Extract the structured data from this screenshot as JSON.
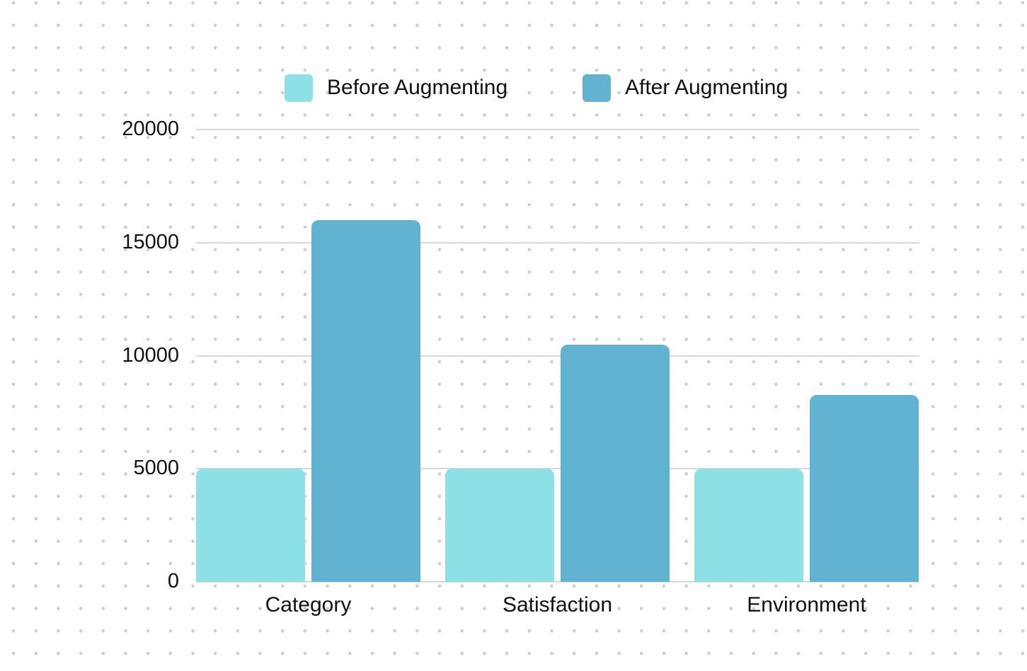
{
  "canvas": {
    "background_color": "#ffffff",
    "dot_pattern_color": "#c8ced7"
  },
  "chart_data": {
    "type": "bar",
    "categories": [
      "Category",
      "Satisfaction",
      "Environment"
    ],
    "series": [
      {
        "name": "Before Augmenting",
        "color": "#8DE1E6",
        "values": [
          5000,
          5000,
          5000
        ]
      },
      {
        "name": "After Augmenting",
        "color": "#62B2D1",
        "values": [
          16000,
          10500,
          8250
        ]
      }
    ],
    "ylim": [
      0,
      20000
    ],
    "yticks": [
      0,
      5000,
      10000,
      15000,
      20000
    ],
    "ytick_labels": [
      "0",
      "5000",
      "10000",
      "15000",
      "20000"
    ],
    "xlabel": "",
    "ylabel": "",
    "grid": true,
    "gridline_color": "#d8d8d8",
    "legend_position": "top",
    "text_color": "#111111"
  }
}
